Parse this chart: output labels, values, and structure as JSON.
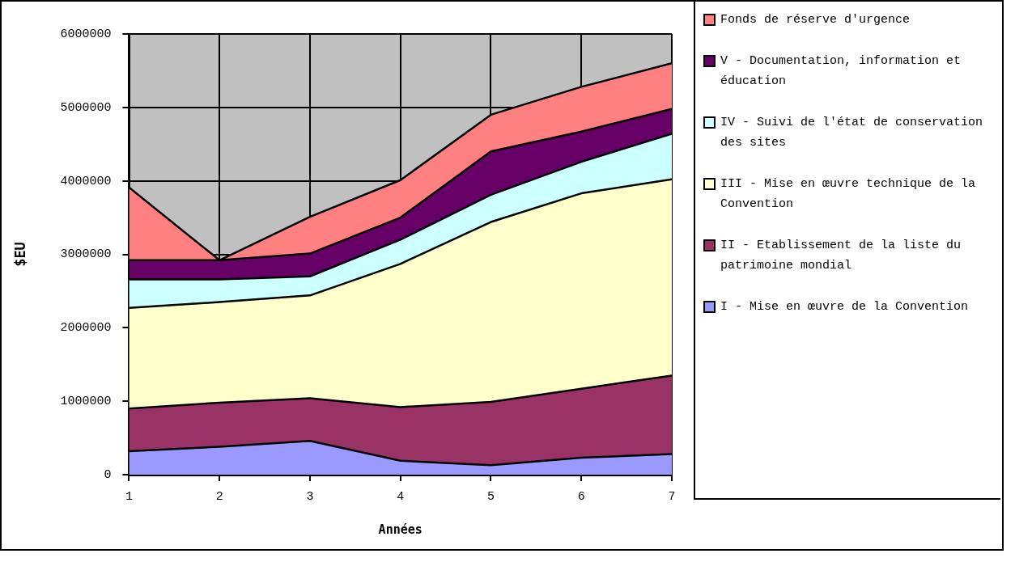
{
  "chart_data": {
    "type": "area",
    "stacked": true,
    "xlabel": "Années",
    "ylabel": "$EU",
    "x": [
      1,
      2,
      3,
      4,
      5,
      6,
      7
    ],
    "xlim": [
      1,
      7
    ],
    "xticks": [
      1,
      2,
      3,
      4,
      5,
      6,
      7
    ],
    "ylim": [
      0,
      6000000
    ],
    "yticks": [
      0,
      1000000,
      2000000,
      3000000,
      4000000,
      5000000,
      6000000
    ],
    "grid": true,
    "legend": "right",
    "series": [
      {
        "name": "I - Mise en œuvre de la Convention",
        "color": "#9999ff",
        "values": [
          320000,
          380000,
          460000,
          190000,
          130000,
          230000,
          280000
        ]
      },
      {
        "name": "II - Etablissement de la liste du patrimoine mondial",
        "color": "#993366",
        "values": [
          580000,
          600000,
          580000,
          730000,
          860000,
          940000,
          1070000
        ]
      },
      {
        "name": "III - Mise en œuvre technique de la Convention",
        "color": "#ffffcc",
        "values": [
          1370000,
          1370000,
          1400000,
          1950000,
          2450000,
          2660000,
          2670000
        ]
      },
      {
        "name": "IV - Suivi de l'état de conservation des sites",
        "color": "#ccffff",
        "values": [
          390000,
          310000,
          260000,
          330000,
          370000,
          430000,
          620000
        ]
      },
      {
        "name": "V - Documentation, information et éducation",
        "color": "#660066",
        "values": [
          260000,
          260000,
          310000,
          300000,
          590000,
          410000,
          340000
        ]
      },
      {
        "name": "Fonds de réserve d'urgence",
        "color": "#ff8080",
        "values": [
          990000,
          0,
          500000,
          510000,
          500000,
          610000,
          620000
        ]
      }
    ]
  }
}
